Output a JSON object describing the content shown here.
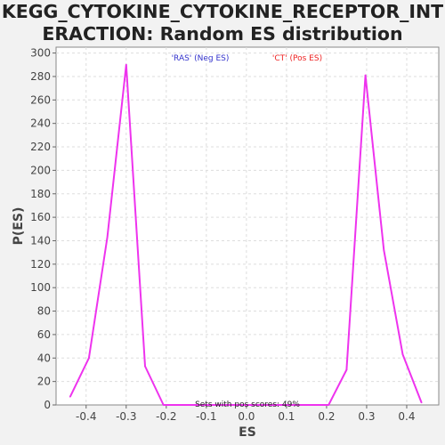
{
  "chart_data": {
    "type": "line",
    "title_line1": "KEGG_CYTOKINE_CYTOKINE_RECEPTOR_INT",
    "title_line2": "ERACTION: Random ES distribution",
    "xlabel": "ES",
    "ylabel": "P(ES)",
    "xlim": [
      -0.475,
      0.48
    ],
    "ylim": [
      0,
      305
    ],
    "grid": true,
    "x_ticks": [
      "-0.4",
      "-0.3",
      "-0.2",
      "-0.1",
      "0.0",
      "0.1",
      "0.2",
      "0.3",
      "0.4"
    ],
    "y_ticks": [
      "0",
      "20",
      "40",
      "60",
      "80",
      "100",
      "120",
      "140",
      "160",
      "180",
      "200",
      "220",
      "240",
      "260",
      "280",
      "300"
    ],
    "legend": [
      {
        "label": "'RAS' (Neg ES)",
        "color": "#3333cc"
      },
      {
        "label": "'CT' (Pos ES)",
        "color": "#ee2222"
      }
    ],
    "annotation": "Sets with pos scores: 49%",
    "series": [
      {
        "color": "#ee33ee",
        "points": [
          [
            -0.44,
            7
          ],
          [
            -0.393,
            40
          ],
          [
            -0.347,
            143
          ],
          [
            -0.3,
            290
          ],
          [
            -0.253,
            33
          ],
          [
            -0.207,
            0
          ],
          [
            -0.16,
            0
          ],
          [
            -0.113,
            0
          ],
          [
            -0.067,
            0
          ],
          [
            -0.02,
            0
          ],
          [
            0.027,
            0
          ],
          [
            0.073,
            0
          ],
          [
            0.12,
            0
          ],
          [
            0.167,
            0
          ],
          [
            0.205,
            0
          ],
          [
            0.25,
            30
          ],
          [
            0.297,
            281
          ],
          [
            0.343,
            132
          ],
          [
            0.39,
            43
          ],
          [
            0.437,
            2
          ]
        ]
      }
    ]
  }
}
